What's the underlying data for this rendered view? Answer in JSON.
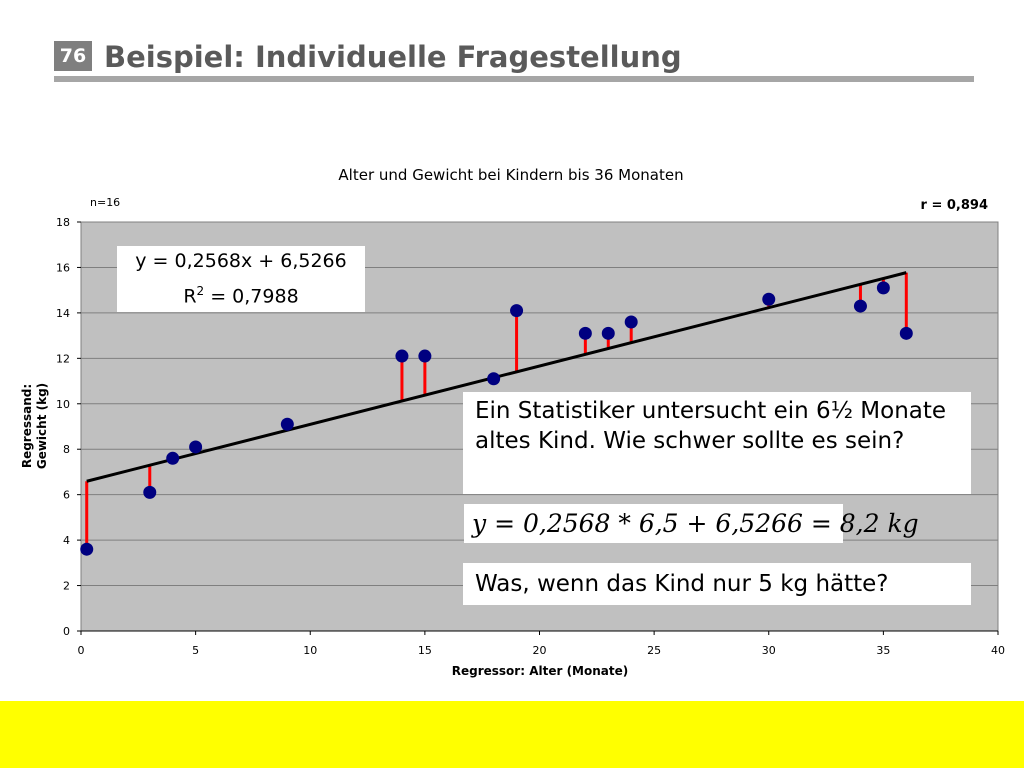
{
  "slide": {
    "number": "76",
    "title": "Beispiel: Individuelle Fragestellung"
  },
  "chart_data": {
    "type": "scatter",
    "title": "Alter und Gewicht bei Kindern bis 36 Monaten",
    "xlabel": "Regressor: Alter (Monate)",
    "ylabel": [
      "Regressand:",
      "Gewicht (kg)"
    ],
    "xlim": [
      0,
      40
    ],
    "ylim": [
      0,
      18
    ],
    "xticks": [
      0,
      5,
      10,
      15,
      20,
      25,
      30,
      35,
      40
    ],
    "yticks": [
      0,
      2,
      4,
      6,
      8,
      10,
      12,
      14,
      16,
      18
    ],
    "grid": true,
    "sample_note": "n=16",
    "correlation_note": "r = 0,894",
    "regression": {
      "slope": 0.2568,
      "intercept": 6.5266,
      "x_start": 0.25,
      "x_end": 36
    },
    "equation_label": "y = 0,2568x + 6,5266",
    "r2_label_prefix": "R",
    "r2_label_sup": "2",
    "r2_label_value": " = 0,7988",
    "points": [
      {
        "x": 0.25,
        "y": 3.6
      },
      {
        "x": 3,
        "y": 6.1
      },
      {
        "x": 4,
        "y": 7.6
      },
      {
        "x": 5,
        "y": 8.1
      },
      {
        "x": 9,
        "y": 9.1
      },
      {
        "x": 14,
        "y": 12.1
      },
      {
        "x": 15,
        "y": 12.1
      },
      {
        "x": 18,
        "y": 11.1
      },
      {
        "x": 19,
        "y": 14.1
      },
      {
        "x": 22,
        "y": 13.1
      },
      {
        "x": 23,
        "y": 13.1
      },
      {
        "x": 24,
        "y": 13.6
      },
      {
        "x": 30,
        "y": 14.6
      },
      {
        "x": 34,
        "y": 14.3
      },
      {
        "x": 35,
        "y": 15.1
      },
      {
        "x": 36,
        "y": 13.1
      }
    ],
    "colors": {
      "plot_bg": "#c0c0c0",
      "point": "#000080",
      "residual": "#ff0000",
      "line": "#000000",
      "grid": "#7f7f7f"
    }
  },
  "callouts": {
    "question": "Ein Statistiker untersucht ein 6½ Monate altes Kind. Wie schwer sollte es sein?",
    "formula": "y = 0,2568 * 6,5 + 6,5266 = 8,2 kg",
    "followup": "Was, wenn das Kind nur 5 kg hätte?"
  }
}
